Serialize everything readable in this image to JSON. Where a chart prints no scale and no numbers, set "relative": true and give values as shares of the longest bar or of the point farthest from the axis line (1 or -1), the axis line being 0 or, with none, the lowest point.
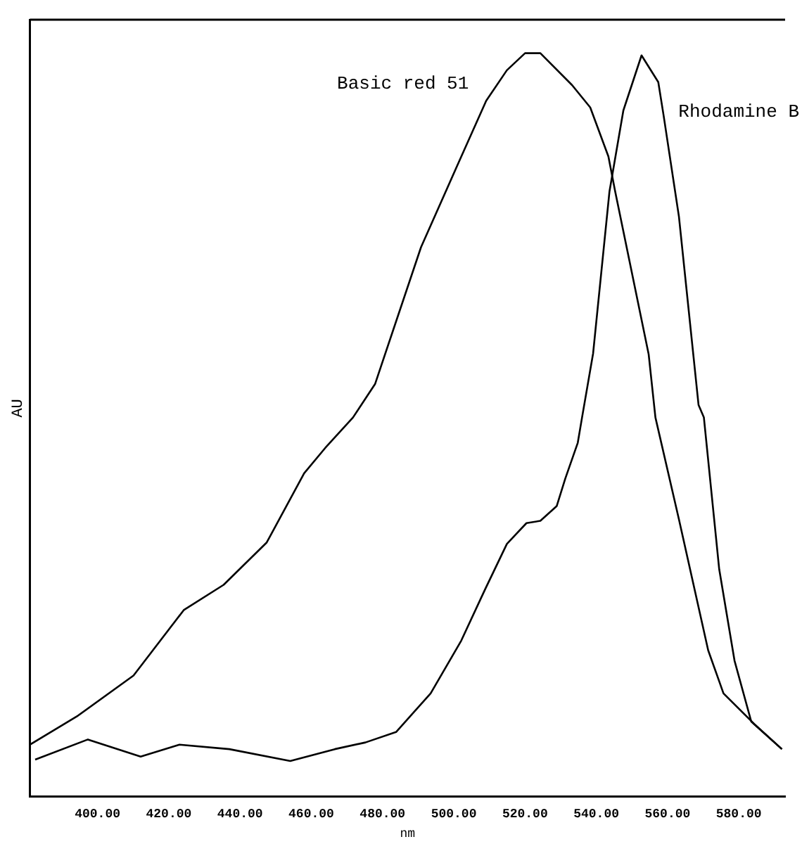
{
  "chart_data": {
    "type": "line",
    "relative": true,
    "xlabel": "nm",
    "ylabel": "AU",
    "xlim": [
      381,
      593
    ],
    "xticks": [
      {
        "value": 400,
        "label": "400.00"
      },
      {
        "value": 420,
        "label": "420.00"
      },
      {
        "value": 440,
        "label": "440.00"
      },
      {
        "value": 460,
        "label": "460.00"
      },
      {
        "value": 480,
        "label": "480.00"
      },
      {
        "value": 500,
        "label": "500.00"
      },
      {
        "value": 520,
        "label": "520.00"
      },
      {
        "value": 540,
        "label": "540.00"
      },
      {
        "value": 560,
        "label": "560.00"
      },
      {
        "value": 580,
        "label": "580.00"
      }
    ],
    "grid": false,
    "legend": false,
    "marker": "none",
    "line_style": "solid",
    "series": [
      {
        "name": "Basic red 51",
        "color": "#000000",
        "x": [
          381,
          394.5,
          410.1,
          424.2,
          435.4,
          447.5,
          458.0,
          463.9,
          471.7,
          477.9,
          490.8,
          500.9,
          509.1,
          514.9,
          520.0,
          524.3,
          533.2,
          538.3,
          543.4,
          545.3,
          554.7,
          556.6,
          563.2,
          571.4,
          575.7,
          584.3,
          592.1
        ],
        "values": [
          0.07,
          0.109,
          0.163,
          0.251,
          0.285,
          0.342,
          0.435,
          0.469,
          0.51,
          0.555,
          0.739,
          0.848,
          0.936,
          0.977,
          1.0,
          1.0,
          0.957,
          0.927,
          0.861,
          0.814,
          0.595,
          0.51,
          0.373,
          0.197,
          0.139,
          0.098,
          0.064
        ]
      },
      {
        "name": "Rhodamine B",
        "color": "#000000",
        "x": [
          382.5,
          397.3,
          412.1,
          423.0,
          437.0,
          454.1,
          466.6,
          475.2,
          483.8,
          493.5,
          502.1,
          508.7,
          514.9,
          520.4,
          524.3,
          528.9,
          531.3,
          534.8,
          536.0,
          539.1,
          543.7,
          547.6,
          552.7,
          557.4,
          558.9,
          563.2,
          568.7,
          570.2,
          574.5,
          578.8,
          583.5,
          592.1
        ],
        "values": [
          0.05,
          0.077,
          0.054,
          0.07,
          0.064,
          0.048,
          0.064,
          0.073,
          0.087,
          0.139,
          0.21,
          0.278,
          0.34,
          0.368,
          0.371,
          0.391,
          0.428,
          0.476,
          0.51,
          0.596,
          0.814,
          0.923,
          0.997,
          0.961,
          0.916,
          0.78,
          0.527,
          0.51,
          0.306,
          0.183,
          0.101,
          0.064
        ]
      }
    ]
  }
}
